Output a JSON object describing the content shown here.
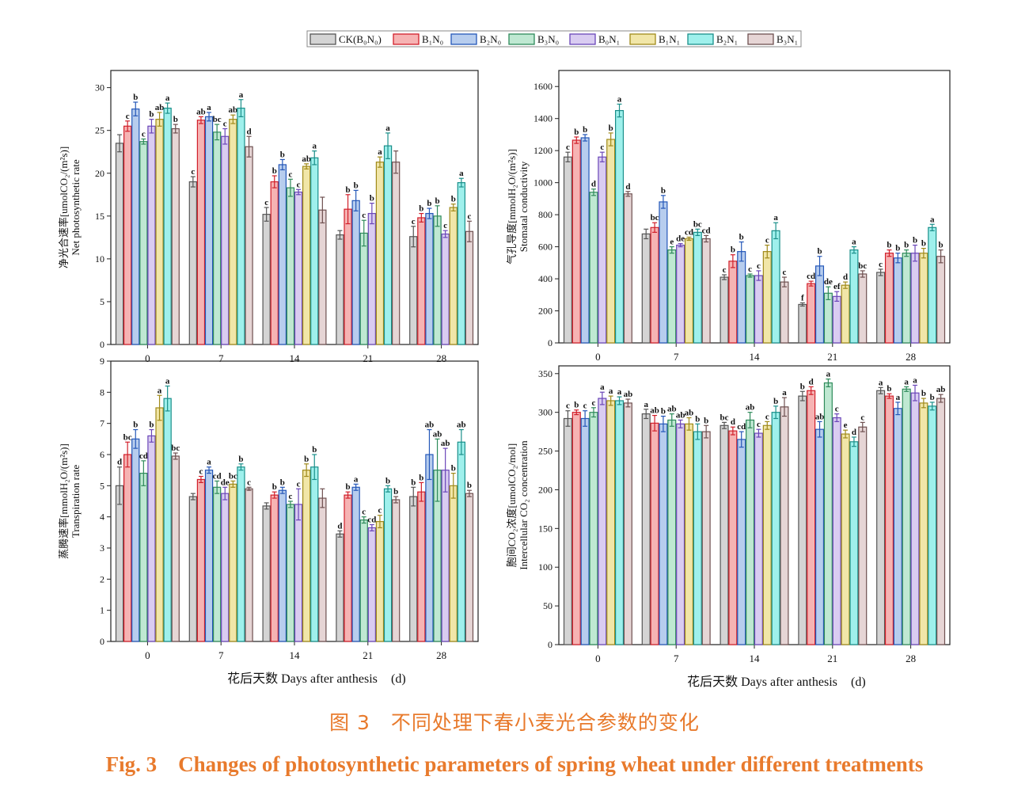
{
  "legend": {
    "items": [
      {
        "label": "CK(B₀N₀)",
        "color": "#d4d4d4"
      },
      {
        "label": "B₁N₀",
        "color": "#f6b3b3"
      },
      {
        "label": "B₂N₀",
        "color": "#b7cdee"
      },
      {
        "label": "B₃N₀",
        "color": "#bfe8d2"
      },
      {
        "label": "B₀N₁",
        "color": "#d9ccf1"
      },
      {
        "label": "B₁N₁",
        "color": "#f1e6a8"
      },
      {
        "label": "B₂N₁",
        "color": "#9ff0ec"
      },
      {
        "label": "B₃N₁",
        "color": "#e6d5d5"
      }
    ],
    "edges": [
      "#555555",
      "#d11f2a",
      "#2457b8",
      "#2e8a5a",
      "#6a46b8",
      "#a08a1a",
      "#1a8f8a",
      "#6e5050"
    ]
  },
  "x_axis_title": "花后天数  Days after anthesis",
  "x_unit": "(d)",
  "caption_cn": "图 3　不同处理下春小麦光合参数的变化",
  "caption_en": "Fig. 3　Changes of photosynthetic parameters of spring wheat under different treatments",
  "chart_data": [
    {
      "type": "bar",
      "ylabel_cn": "净光合速率[umolCO₂/(m²s)]",
      "ylabel_en": "Net photosynthetic rate",
      "categories": [
        "0",
        "7",
        "14",
        "21",
        "28"
      ],
      "ylim": [
        0,
        32
      ],
      "yticks": [
        0,
        5,
        10,
        15,
        20,
        25,
        30
      ],
      "series": [
        {
          "name": "CK(B₀N₀)",
          "values": [
            23.5,
            19.0,
            15.2,
            12.8,
            12.6
          ],
          "errors": [
            1.0,
            0.6,
            0.8,
            0.5,
            1.2
          ],
          "letters": [
            "",
            "c",
            "c",
            "",
            "c"
          ]
        },
        {
          "name": "B₁N₀",
          "values": [
            25.5,
            26.2,
            19.0,
            15.8,
            14.8
          ],
          "errors": [
            0.6,
            0.4,
            0.7,
            1.7,
            0.5
          ],
          "letters": [
            "c",
            "ab",
            "b",
            "b",
            "b"
          ]
        },
        {
          "name": "B₂N₀",
          "values": [
            27.5,
            26.6,
            21.0,
            16.8,
            15.3
          ],
          "errors": [
            0.8,
            0.5,
            0.6,
            1.2,
            0.6
          ],
          "letters": [
            "b",
            "a",
            "b",
            "b",
            "b"
          ]
        },
        {
          "name": "B₃N₀",
          "values": [
            23.7,
            24.8,
            18.3,
            13.0,
            15.0
          ],
          "errors": [
            0.3,
            0.9,
            1.0,
            1.5,
            1.2
          ],
          "letters": [
            "c",
            "bc",
            "c",
            "c",
            "b"
          ]
        },
        {
          "name": "B₀N₁",
          "values": [
            25.5,
            24.3,
            17.8,
            15.3,
            12.9
          ],
          "errors": [
            0.8,
            0.9,
            0.3,
            1.2,
            0.4
          ],
          "letters": [
            "b",
            "c",
            "c",
            "b",
            "c"
          ]
        },
        {
          "name": "B₁N₁",
          "values": [
            26.3,
            26.3,
            20.8,
            21.3,
            16.0
          ],
          "errors": [
            0.8,
            0.5,
            0.3,
            0.6,
            0.4
          ],
          "letters": [
            "ab",
            "ab",
            "ab",
            "a",
            "b"
          ]
        },
        {
          "name": "B₂N₁",
          "values": [
            27.6,
            27.6,
            21.8,
            23.2,
            18.9
          ],
          "errors": [
            0.6,
            1.0,
            0.8,
            1.5,
            0.5
          ],
          "letters": [
            "a",
            "a",
            "a",
            "a",
            "a"
          ]
        },
        {
          "name": "B₃N₁",
          "values": [
            25.2,
            23.1,
            15.7,
            21.3,
            13.2
          ],
          "errors": [
            0.5,
            1.2,
            1.5,
            1.3,
            1.2
          ],
          "letters": [
            "b",
            "d",
            "",
            "",
            "c"
          ]
        }
      ]
    },
    {
      "type": "bar",
      "ylabel_cn": "气孔导度[mmolH₂O/(m²s)]",
      "ylabel_en": "Stomatal conductivity",
      "categories": [
        "0",
        "7",
        "14",
        "21",
        "28"
      ],
      "ylim": [
        0,
        1700
      ],
      "yticks": [
        0,
        200,
        400,
        600,
        800,
        1000,
        1200,
        1400,
        1600
      ],
      "series": [
        {
          "name": "CK(B₀N₀)",
          "values": [
            1160,
            680,
            410,
            240,
            440
          ],
          "errors": [
            30,
            30,
            15,
            10,
            20
          ],
          "letters": [
            "c",
            "",
            "c",
            "f",
            "c"
          ]
        },
        {
          "name": "B₁N₀",
          "values": [
            1265,
            720,
            510,
            370,
            560
          ],
          "errors": [
            20,
            30,
            40,
            15,
            20
          ],
          "letters": [
            "b",
            "bc",
            "b",
            "cd",
            "b"
          ]
        },
        {
          "name": "B₂N₀",
          "values": [
            1280,
            880,
            570,
            480,
            530
          ],
          "errors": [
            20,
            40,
            60,
            60,
            30
          ],
          "letters": [
            "b",
            "b",
            "b",
            "b",
            "b"
          ]
        },
        {
          "name": "B₃N₀",
          "values": [
            940,
            580,
            420,
            310,
            560
          ],
          "errors": [
            20,
            20,
            10,
            40,
            20
          ],
          "letters": [
            "d",
            "e",
            "c",
            "de",
            "b"
          ]
        },
        {
          "name": "B₀N₁",
          "values": [
            1160,
            610,
            420,
            290,
            560
          ],
          "errors": [
            30,
            10,
            30,
            30,
            50
          ],
          "letters": [
            "c",
            "de",
            "c",
            "ef",
            "b"
          ]
        },
        {
          "name": "B₁N₁",
          "values": [
            1270,
            650,
            570,
            360,
            560
          ],
          "errors": [
            40,
            10,
            40,
            20,
            30
          ],
          "letters": [
            "b",
            "cd",
            "c",
            "d",
            "b"
          ]
        },
        {
          "name": "B₂N₁",
          "values": [
            1450,
            690,
            700,
            580,
            720
          ],
          "errors": [
            40,
            20,
            50,
            20,
            20
          ],
          "letters": [
            "a",
            "bc",
            "a",
            "a",
            "a"
          ]
        },
        {
          "name": "B₃N₁",
          "values": [
            930,
            650,
            380,
            430,
            540
          ],
          "errors": [
            15,
            20,
            30,
            20,
            40
          ],
          "letters": [
            "d",
            "cd",
            "c",
            "bc",
            "b"
          ]
        }
      ]
    },
    {
      "type": "bar",
      "ylabel_cn": "蒸腾速率[mmolH₂O/(m²s)]",
      "ylabel_en": "Transpiration rate",
      "categories": [
        "0",
        "7",
        "14",
        "21",
        "28"
      ],
      "ylim": [
        0,
        9
      ],
      "yticks": [
        0,
        1,
        2,
        3,
        4,
        5,
        6,
        7,
        8,
        9
      ],
      "series": [
        {
          "name": "CK(B₀N₀)",
          "values": [
            5.0,
            4.65,
            4.35,
            3.45,
            4.65
          ],
          "errors": [
            0.6,
            0.1,
            0.1,
            0.1,
            0.3
          ],
          "letters": [
            "d",
            "",
            "",
            "d",
            "b"
          ]
        },
        {
          "name": "B₁N₀",
          "values": [
            6.0,
            5.2,
            4.7,
            4.7,
            4.8
          ],
          "errors": [
            0.4,
            0.1,
            0.1,
            0.1,
            0.3
          ],
          "letters": [
            "bc",
            "c",
            "b",
            "b",
            "b"
          ]
        },
        {
          "name": "B₂N₀",
          "values": [
            6.5,
            5.5,
            4.85,
            4.95,
            6.0
          ],
          "errors": [
            0.3,
            0.1,
            0.1,
            0.1,
            0.8
          ],
          "letters": [
            "b",
            "a",
            "b",
            "a",
            "ab"
          ]
        },
        {
          "name": "B₃N₀",
          "values": [
            5.4,
            4.95,
            4.4,
            3.9,
            5.5
          ],
          "errors": [
            0.4,
            0.2,
            0.1,
            0.1,
            1.0
          ],
          "letters": [
            "cd",
            "cd",
            "c",
            "c",
            "ab"
          ]
        },
        {
          "name": "B₀N₁",
          "values": [
            6.6,
            4.75,
            4.4,
            3.65,
            5.5
          ],
          "errors": [
            0.2,
            0.2,
            0.5,
            0.1,
            0.7
          ],
          "letters": [
            "b",
            "de",
            "c",
            "cd",
            "ab"
          ]
        },
        {
          "name": "B₁N₁",
          "values": [
            7.5,
            5.05,
            5.5,
            3.85,
            5.0
          ],
          "errors": [
            0.4,
            0.1,
            0.2,
            0.2,
            0.4
          ],
          "letters": [
            "a",
            "bc",
            "b",
            "c",
            "b"
          ]
        },
        {
          "name": "B₂N₁",
          "values": [
            7.8,
            5.6,
            5.6,
            4.9,
            6.4
          ],
          "errors": [
            0.4,
            0.1,
            0.4,
            0.1,
            0.4
          ],
          "letters": [
            "a",
            "b",
            "b",
            "b",
            "ab"
          ]
        },
        {
          "name": "B₃N₁",
          "values": [
            5.95,
            4.9,
            4.6,
            4.55,
            4.75
          ],
          "errors": [
            0.1,
            0.05,
            0.3,
            0.1,
            0.1
          ],
          "letters": [
            "bc",
            "c",
            "",
            "b",
            "b"
          ]
        }
      ]
    },
    {
      "type": "bar",
      "ylabel_cn": "胞间CO₂浓度[umolCO₂/mol]",
      "ylabel_en": "Intercellular CO₂ concentration",
      "categories": [
        "0",
        "7",
        "14",
        "21",
        "28"
      ],
      "ylim": [
        0,
        360
      ],
      "yticks": [
        0,
        50,
        100,
        150,
        200,
        250,
        300,
        350
      ],
      "series": [
        {
          "name": "CK(B₀N₀)",
          "values": [
            292,
            298,
            283,
            321,
            328
          ],
          "errors": [
            10,
            6,
            4,
            6,
            4
          ],
          "letters": [
            "c",
            "a",
            "bc",
            "b",
            "a"
          ]
        },
        {
          "name": "B₁N₀",
          "values": [
            300,
            286,
            276,
            328,
            321
          ],
          "errors": [
            3,
            10,
            5,
            5,
            3
          ],
          "letters": [
            "b",
            "ab",
            "d",
            "d",
            "b"
          ]
        },
        {
          "name": "B₂N₀",
          "values": [
            292,
            285,
            265,
            278,
            305
          ],
          "errors": [
            10,
            10,
            10,
            10,
            8
          ],
          "letters": [
            "c",
            "b",
            "cd",
            "ab",
            "a"
          ]
        },
        {
          "name": "B₃N₀",
          "values": [
            300,
            290,
            290,
            338,
            330
          ],
          "errors": [
            6,
            8,
            10,
            5,
            3
          ],
          "letters": [
            "c",
            "ab",
            "ab",
            "a",
            "a"
          ]
        },
        {
          "name": "B₀N₁",
          "values": [
            318,
            285,
            273,
            293,
            325
          ],
          "errors": [
            8,
            5,
            5,
            5,
            10
          ],
          "letters": [
            "a",
            "ab",
            "c",
            "c",
            "a"
          ]
        },
        {
          "name": "B₁N₁",
          "values": [
            315,
            285,
            283,
            272,
            312
          ],
          "errors": [
            6,
            8,
            5,
            5,
            6
          ],
          "letters": [
            "a",
            "ab",
            "c",
            "e",
            "b"
          ]
        },
        {
          "name": "B₂N₁",
          "values": [
            315,
            275,
            300,
            262,
            308
          ],
          "errors": [
            5,
            10,
            8,
            6,
            5
          ],
          "letters": [
            "a",
            "b",
            "b",
            "d",
            "b"
          ]
        },
        {
          "name": "B₃N₁",
          "values": [
            312,
            275,
            307,
            281,
            318
          ],
          "errors": [
            5,
            8,
            12,
            6,
            5
          ],
          "letters": [
            "ab",
            "b",
            "a",
            "c",
            "ab"
          ]
        }
      ]
    }
  ]
}
